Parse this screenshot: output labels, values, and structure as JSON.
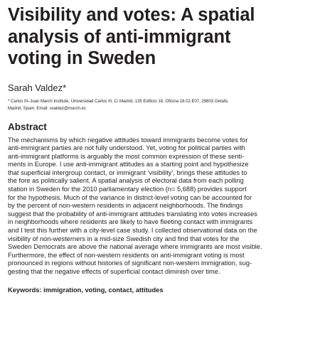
{
  "article": {
    "title_lines": [
      "Visibility and votes: A spatial",
      "analysis of anti-immigrant",
      "voting in Sweden"
    ],
    "author": "Sarah Valdez*",
    "affiliation_lines": [
      "* Carlos III–Juan March Institute, Universidad Carlos III, C/ Madrid, 135 Edificio 18, Oficina 18.02.E07, 29803 Getafe,",
      "Madrid, Spain. Email: svaldez@march.es"
    ]
  },
  "abstract": {
    "heading": "Abstract",
    "lines": [
      "The mechanisms by which negative attitudes toward immigrants become votes for",
      "anti-immigrant parties are not fully understood. Yet, voting for political parties with",
      "anti-immigrant platforms is arguably the most common expression of these senti-",
      "ments in Europe. I use anti-immigrant attitudes as a starting point and hypothesize",
      "that superficial intergroup contact, or immigrant ‘visibility’, brings these attitudes to",
      "the fore as politically salient. A spatial analysis of electoral data from each polling",
      "station in Sweden for the 2010 parliamentary election (n= 5,688) provides support",
      "for the hypothesis. Much of the variance in district-level voting can be accounted for",
      "by the percent of non-western residents in adjacent neighborhoods. The findings",
      "suggest that the probability of anti-immigrant attitudes translating into votes increases",
      "in neighborhoods where residents are likely to have fleeting contact with immigrants",
      "and I test this further with a city-level case study. I collected observational data on the",
      "visibility of non-westerners in a mid-size Swedish city and find that votes for the",
      "Sweden Democrats are above the national average where immigrants are most visible.",
      "Furthermore, the effect of non-western residents on anti-immigrant voting is most",
      "pronounced in regions without histories of significant non-western immigration, sug-",
      "gesting that the negative effects of superficial contact diminish over time."
    ]
  },
  "keywords": {
    "text": "Keywords:  immigration, voting, contact, attitudes"
  }
}
